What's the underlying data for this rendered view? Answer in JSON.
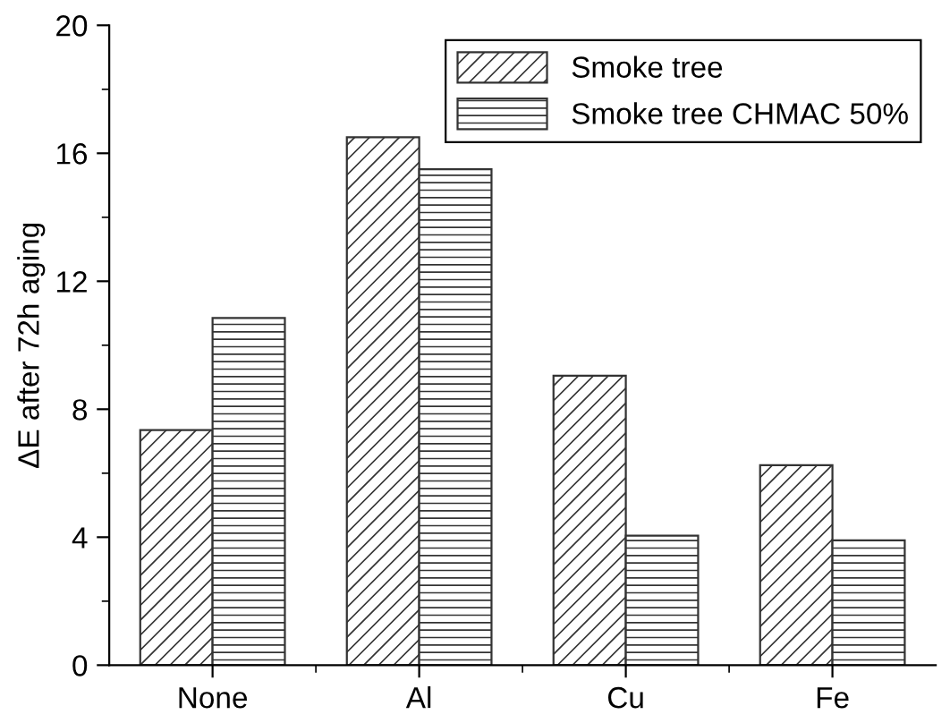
{
  "chart_data": {
    "type": "bar",
    "ylabel": "ΔE after 72h aging",
    "categories": [
      "None",
      "Al",
      "Cu",
      "Fe"
    ],
    "series": [
      {
        "name": "Smoke tree",
        "color": "#333333",
        "values": [
          7.35,
          16.5,
          9.05,
          6.25
        ]
      },
      {
        "name": "Smoke tree CHMAC 50%",
        "color": "#333333",
        "values": [
          10.85,
          15.5,
          4.05,
          3.9
        ]
      }
    ],
    "ylim": [
      0,
      20
    ],
    "yticks": [
      0,
      {
        "value": 2,
        "label": null
      },
      4,
      {
        "value": 6,
        "label": null
      },
      8,
      {
        "value": 10,
        "label": null
      },
      12,
      {
        "value": 14,
        "label": null
      },
      16,
      {
        "value": 18,
        "label": null
      },
      20
    ],
    "grid": false,
    "legend": "top right"
  }
}
